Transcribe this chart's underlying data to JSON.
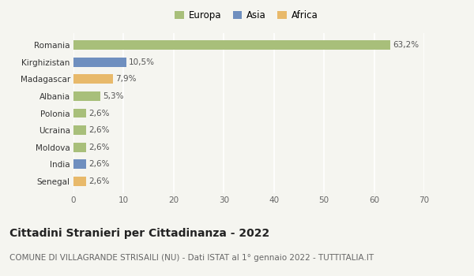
{
  "categories": [
    "Senegal",
    "India",
    "Moldova",
    "Ucraina",
    "Polonia",
    "Albania",
    "Madagascar",
    "Kirghizistan",
    "Romania"
  ],
  "values": [
    2.6,
    2.6,
    2.6,
    2.6,
    2.6,
    5.3,
    7.9,
    10.5,
    63.2
  ],
  "labels": [
    "2,6%",
    "2,6%",
    "2,6%",
    "2,6%",
    "2,6%",
    "5,3%",
    "7,9%",
    "10,5%",
    "63,2%"
  ],
  "colors": [
    "#e8b96a",
    "#6f8fbf",
    "#a8bf7a",
    "#a8bf7a",
    "#a8bf7a",
    "#a8bf7a",
    "#e8b96a",
    "#6f8fbf",
    "#a8bf7a"
  ],
  "legend": [
    {
      "label": "Europa",
      "color": "#a8bf7a"
    },
    {
      "label": "Asia",
      "color": "#6f8fbf"
    },
    {
      "label": "Africa",
      "color": "#e8b96a"
    }
  ],
  "xlim": [
    0,
    70
  ],
  "xticks": [
    0,
    10,
    20,
    30,
    40,
    50,
    60,
    70
  ],
  "title": "Cittadini Stranieri per Cittadinanza - 2022",
  "subtitle": "COMUNE DI VILLAGRANDE STRISAILI (NU) - Dati ISTAT al 1° gennaio 2022 - TUTTITALIA.IT",
  "bg_color": "#f5f5f0",
  "grid_color": "#ffffff",
  "bar_height": 0.55,
  "label_fontsize": 7.5,
  "tick_fontsize": 7.5,
  "title_fontsize": 10,
  "subtitle_fontsize": 7.5
}
